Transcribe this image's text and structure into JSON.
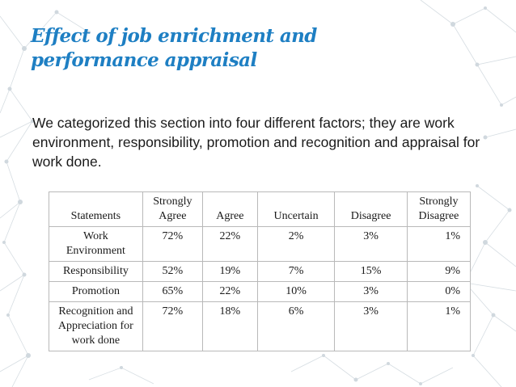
{
  "slide": {
    "title_line1": "Effect of job enrichment and",
    "title_line2": "performance appraisal",
    "intro": "We categorized this section into four different factors; they are work environment, responsibility, promotion and recognition and appraisal for work done.",
    "title_color": "#1e7fc3",
    "background_decoration": "network-graph-pattern"
  },
  "table": {
    "headers": [
      "Statements",
      "Strongly Agree",
      "Agree",
      "Uncertain",
      "Disagree",
      "Strongly Disagree"
    ],
    "rows": [
      {
        "statement": "Work Environment",
        "values": [
          "72%",
          "22%",
          "2%",
          "3%",
          "1%"
        ]
      },
      {
        "statement": "Responsibility",
        "values": [
          "52%",
          "19%",
          "7%",
          "15%",
          "9%"
        ]
      },
      {
        "statement": "Promotion",
        "values": [
          "65%",
          "22%",
          "10%",
          "3%",
          "0%"
        ]
      },
      {
        "statement": "Recognition and Appreciation for work done",
        "values": [
          "72%",
          "18%",
          "6%",
          "3%",
          "1%"
        ]
      }
    ]
  }
}
